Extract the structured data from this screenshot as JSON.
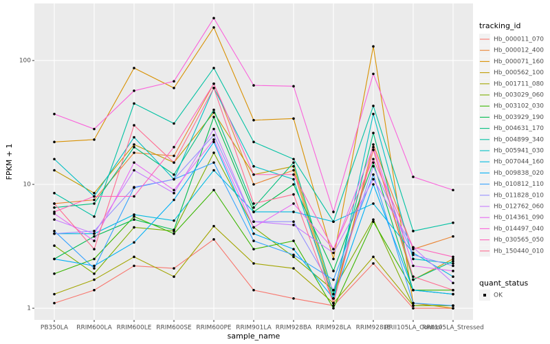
{
  "chart_data": {
    "type": "line",
    "xlabel": "sample_name",
    "ylabel": "FPKM + 1",
    "categories": [
      "PB350LA",
      "RRIM600LA",
      "RRIM600LE",
      "RRIM600SE",
      "RRIM600PE",
      "RRIM901LA",
      "RRIM928BA",
      "RRIM928LA",
      "RRIM928LE",
      "RRII105LA_Control",
      "RRII105LA_Stressed"
    ],
    "log_scale": true,
    "grid": true,
    "ylim": [
      0.805,
      289
    ],
    "yticks": [
      1,
      10,
      100
    ],
    "legend_title": "tracking_id",
    "legend_position": "right",
    "point_color": "#000000",
    "shape_legend": {
      "title": "quant_status",
      "labels": [
        "OK"
      ]
    },
    "series": [
      {
        "name": "Hb_000011_070",
        "color": "#F8766D",
        "values": [
          1.1,
          1.4,
          2.2,
          2.1,
          3.6,
          1.4,
          1.2,
          1.05,
          2.3,
          1.0,
          1.0
        ]
      },
      {
        "name": "Hb_000012_400",
        "color": "#EA8331",
        "values": [
          7,
          7.5,
          18,
          17,
          65,
          10,
          13,
          1.1,
          21,
          3,
          3.8
        ]
      },
      {
        "name": "Hb_000071_160",
        "color": "#D89000",
        "values": [
          22,
          23,
          87,
          60,
          185,
          33,
          34,
          2.5,
          130,
          1.1,
          1.0
        ]
      },
      {
        "name": "Hb_000562_100",
        "color": "#C09B00",
        "values": [
          13,
          8.5,
          21,
          15,
          38,
          12,
          14,
          1.2,
          19,
          1.7,
          2.5
        ]
      },
      {
        "name": "Hb_001711_080",
        "color": "#A3A500",
        "values": [
          1.3,
          1.7,
          2.6,
          1.8,
          4.6,
          2.3,
          2.1,
          1.1,
          2.6,
          1.05,
          1.05
        ]
      },
      {
        "name": "Hb_003029_060",
        "color": "#7CAE00",
        "values": [
          3.2,
          1.9,
          4.5,
          4.2,
          18,
          4.5,
          2.6,
          1.4,
          5.2,
          1.05,
          1.05
        ]
      },
      {
        "name": "Hb_003102_030",
        "color": "#39B600",
        "values": [
          1.9,
          2.5,
          5.5,
          4.0,
          9,
          3,
          3.5,
          1.0,
          5,
          1.4,
          1.4
        ]
      },
      {
        "name": "Hb_003929_190",
        "color": "#00BB4E",
        "values": [
          2.5,
          3.8,
          5.2,
          4.3,
          35,
          6,
          10,
          2,
          15,
          1.4,
          1.3
        ]
      },
      {
        "name": "Hb_004631_170",
        "color": "#00BF7D",
        "values": [
          6.5,
          7,
          20,
          12,
          40,
          6.5,
          15,
          1.3,
          26,
          1.7,
          2.4
        ]
      },
      {
        "name": "Hb_004899_340",
        "color": "#00C1A3",
        "values": [
          8.5,
          5.5,
          45,
          31,
          87,
          22,
          16,
          5,
          43,
          4.2,
          4.9
        ]
      },
      {
        "name": "Hb_005941_030",
        "color": "#00BFC4",
        "values": [
          16,
          8,
          24,
          11,
          60,
          14,
          11,
          1.2,
          37,
          2.5,
          2.3
        ]
      },
      {
        "name": "Hb_007044_160",
        "color": "#00BAE0",
        "values": [
          4,
          4,
          5.7,
          5.1,
          13,
          6,
          6,
          5,
          7,
          2.8,
          1.8
        ]
      },
      {
        "name": "Hb_009838_020",
        "color": "#00B0F6",
        "values": [
          2.5,
          2.2,
          3.4,
          7.5,
          22,
          4,
          3,
          1.2,
          10,
          1.4,
          1.3
        ]
      },
      {
        "name": "Hb_010812_110",
        "color": "#35A2FF",
        "values": [
          4.2,
          2.1,
          9.4,
          11,
          15,
          3.5,
          2.7,
          1.7,
          12,
          1.1,
          1.05
        ]
      },
      {
        "name": "Hb_011828_010",
        "color": "#9590FF",
        "values": [
          4,
          4.2,
          9.5,
          11,
          25,
          5,
          5,
          1.4,
          14,
          2.7,
          2.2
        ]
      },
      {
        "name": "Hb_012762_060",
        "color": "#C77CFF",
        "values": [
          5.2,
          4,
          13,
          8.5,
          28,
          5,
          4.7,
          2.8,
          11,
          3.1,
          1.6
        ]
      },
      {
        "name": "Hb_014361_090",
        "color": "#E76BF3",
        "values": [
          5.8,
          3.5,
          15,
          9,
          23,
          4.5,
          7,
          3,
          20,
          2.2,
          2
        ]
      },
      {
        "name": "Hb_014497_040",
        "color": "#FA62DB",
        "values": [
          37,
          28,
          57,
          68,
          220,
          63,
          62,
          6,
          78,
          11.5,
          9
        ]
      },
      {
        "name": "Hb_030565_050",
        "color": "#FF62BC",
        "values": [
          6,
          8,
          8,
          20,
          65,
          12,
          12,
          3,
          16,
          3.1,
          2.6
        ]
      },
      {
        "name": "Hb_150440_010",
        "color": "#FF6C91",
        "values": [
          7,
          3,
          30,
          15,
          60,
          7,
          8.3,
          1.1,
          19,
          1.8,
          1.4
        ]
      }
    ]
  }
}
